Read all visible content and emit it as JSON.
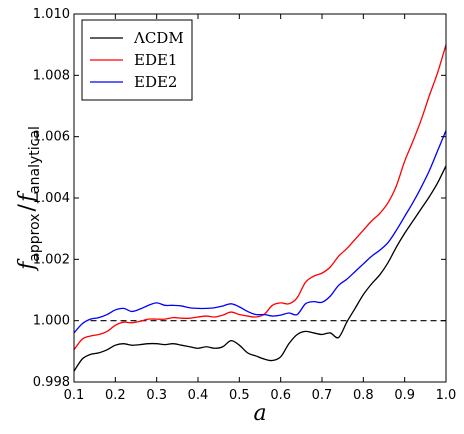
{
  "chart_data": {
    "type": "line",
    "xlabel": "a",
    "ylabel": {
      "f1": "f",
      "sub1": "approx",
      "slash": "/",
      "f2": "f",
      "sub2": "analytical"
    },
    "xlim": [
      0.1,
      1.0
    ],
    "ylim": [
      0.998,
      1.01
    ],
    "xticks": [
      "0.1",
      "0.2",
      "0.3",
      "0.4",
      "0.5",
      "0.6",
      "0.7",
      "0.8",
      "0.9",
      "1.0"
    ],
    "yticks": [
      "0.998",
      "1.000",
      "1.002",
      "1.004",
      "1.006",
      "1.008",
      "1.010"
    ],
    "grid": false,
    "legend_position": "top-left",
    "reference_line": {
      "y": 1.0,
      "x": [
        0.14,
        1.0
      ],
      "style": "dashed",
      "color": "#000000"
    },
    "series": [
      {
        "name": "ΛCDM",
        "color": "#000000",
        "x": [
          0.1,
          0.12,
          0.14,
          0.16,
          0.18,
          0.2,
          0.22,
          0.24,
          0.26,
          0.28,
          0.3,
          0.32,
          0.34,
          0.36,
          0.38,
          0.4,
          0.42,
          0.44,
          0.46,
          0.48,
          0.5,
          0.52,
          0.54,
          0.56,
          0.58,
          0.6,
          0.62,
          0.64,
          0.66,
          0.68,
          0.7,
          0.72,
          0.74,
          0.76,
          0.78,
          0.8,
          0.82,
          0.84,
          0.86,
          0.88,
          0.9,
          0.92,
          0.94,
          0.96,
          0.98,
          1.0
        ],
        "y": [
          0.99835,
          0.99875,
          0.9989,
          0.99895,
          0.99905,
          0.9992,
          0.99925,
          0.9992,
          0.99922,
          0.99925,
          0.99925,
          0.99922,
          0.99925,
          0.9992,
          0.99915,
          0.9991,
          0.99915,
          0.9991,
          0.99915,
          0.99935,
          0.9992,
          0.99895,
          0.99885,
          0.99875,
          0.9987,
          0.99882,
          0.99925,
          0.99955,
          0.99965,
          0.9996,
          0.99955,
          0.9996,
          0.99945,
          0.99995,
          1.0004,
          1.00085,
          1.0012,
          1.0015,
          1.0019,
          1.0024,
          1.00285,
          1.00325,
          1.00365,
          1.00405,
          1.0045,
          1.00505
        ]
      },
      {
        "name": "EDE1",
        "color": "#ff0000",
        "x": [
          0.1,
          0.12,
          0.14,
          0.16,
          0.18,
          0.2,
          0.22,
          0.24,
          0.26,
          0.28,
          0.3,
          0.32,
          0.34,
          0.36,
          0.38,
          0.4,
          0.42,
          0.44,
          0.46,
          0.48,
          0.5,
          0.52,
          0.54,
          0.56,
          0.58,
          0.6,
          0.62,
          0.64,
          0.66,
          0.68,
          0.7,
          0.72,
          0.74,
          0.76,
          0.78,
          0.8,
          0.82,
          0.84,
          0.86,
          0.88,
          0.9,
          0.92,
          0.94,
          0.96,
          0.98,
          1.0
        ],
        "y": [
          0.99905,
          0.9994,
          0.9995,
          0.99955,
          0.99965,
          0.99985,
          0.99995,
          0.99993,
          0.99998,
          1.00005,
          1.00005,
          1.00005,
          1.0001,
          1.00008,
          1.00008,
          1.00012,
          1.00015,
          1.00012,
          1.00018,
          1.00028,
          1.0002,
          1.00015,
          1.00012,
          1.0002,
          1.0005,
          1.00058,
          1.00055,
          1.00075,
          1.00125,
          1.00145,
          1.00155,
          1.00175,
          1.0021,
          1.00235,
          1.00265,
          1.00295,
          1.00325,
          1.0035,
          1.00385,
          1.0044,
          1.0052,
          1.00585,
          1.00655,
          1.00735,
          1.0081,
          1.009
        ]
      },
      {
        "name": "EDE2",
        "color": "#0000ff",
        "x": [
          0.1,
          0.12,
          0.14,
          0.16,
          0.18,
          0.2,
          0.22,
          0.24,
          0.26,
          0.28,
          0.3,
          0.32,
          0.34,
          0.36,
          0.38,
          0.4,
          0.42,
          0.44,
          0.46,
          0.48,
          0.5,
          0.52,
          0.54,
          0.56,
          0.58,
          0.6,
          0.62,
          0.64,
          0.66,
          0.68,
          0.7,
          0.72,
          0.74,
          0.76,
          0.78,
          0.8,
          0.82,
          0.84,
          0.86,
          0.88,
          0.9,
          0.92,
          0.94,
          0.96,
          0.98,
          1.0
        ],
        "y": [
          0.9996,
          0.9999,
          1.00005,
          1.0001,
          1.0002,
          1.00035,
          1.0004,
          1.0003,
          1.00038,
          1.0005,
          1.00058,
          1.0005,
          1.0005,
          1.00048,
          1.00042,
          1.0004,
          1.0004,
          1.00042,
          1.00048,
          1.00055,
          1.00045,
          1.0003,
          1.0002,
          1.0002,
          1.00015,
          1.00018,
          1.00025,
          1.0002,
          1.00055,
          1.00062,
          1.0006,
          1.0008,
          1.00115,
          1.00135,
          1.0016,
          1.00185,
          1.0021,
          1.0023,
          1.00255,
          1.00295,
          1.0034,
          1.00385,
          1.00435,
          1.0049,
          1.00555,
          1.0062
        ]
      }
    ]
  }
}
